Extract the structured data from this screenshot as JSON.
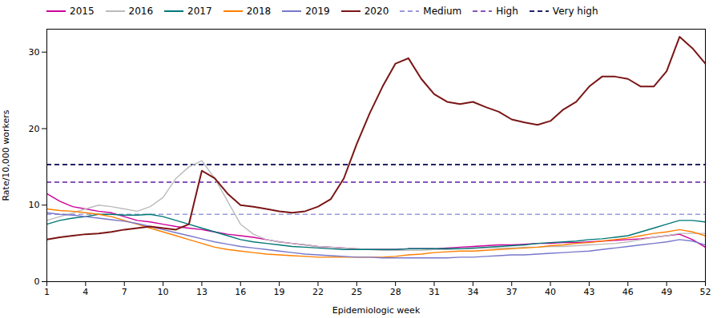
{
  "chart_data": {
    "type": "line",
    "x": [
      1,
      2,
      3,
      4,
      5,
      6,
      7,
      8,
      9,
      10,
      11,
      12,
      13,
      14,
      15,
      16,
      17,
      18,
      19,
      20,
      21,
      22,
      23,
      24,
      25,
      26,
      27,
      28,
      29,
      30,
      31,
      32,
      33,
      34,
      35,
      36,
      37,
      38,
      39,
      40,
      41,
      42,
      43,
      44,
      45,
      46,
      47,
      48,
      49,
      50,
      51,
      52
    ],
    "series": [
      {
        "name": "2015",
        "color": "#CC0099",
        "line_style": "solid",
        "values": [
          11.5,
          10.5,
          9.8,
          9.5,
          9.2,
          9.0,
          8.5,
          8.0,
          7.8,
          7.5,
          7.2,
          7.0,
          6.8,
          6.5,
          6.2,
          6.0,
          5.8,
          5.5,
          5.2,
          5.0,
          4.8,
          4.6,
          4.5,
          4.4,
          4.3,
          4.2,
          4.2,
          4.2,
          4.3,
          4.3,
          4.3,
          4.4,
          4.5,
          4.6,
          4.7,
          4.8,
          4.8,
          4.9,
          5.0,
          5.0,
          5.1,
          5.1,
          5.2,
          5.3,
          5.4,
          5.5,
          5.6,
          5.8,
          6.0,
          6.2,
          5.5,
          4.5
        ]
      },
      {
        "name": "2016",
        "color": "#BBBBBB",
        "line_style": "solid",
        "values": [
          8.0,
          8.5,
          9.0,
          9.5,
          10.0,
          9.8,
          9.5,
          9.2,
          9.8,
          11.0,
          13.5,
          15.0,
          15.8,
          13.5,
          10.5,
          7.5,
          6.2,
          5.5,
          5.2,
          5.0,
          4.8,
          4.6,
          4.5,
          4.4,
          4.3,
          4.2,
          4.1,
          4.1,
          4.1,
          4.1,
          4.2,
          4.2,
          4.3,
          4.3,
          4.4,
          4.4,
          4.4,
          4.5,
          4.5,
          4.6,
          4.6,
          4.7,
          4.8,
          4.9,
          5.0,
          5.2,
          5.5,
          5.8,
          6.0,
          6.3,
          6.3,
          6.3
        ]
      },
      {
        "name": "2017",
        "color": "#007777",
        "line_style": "solid",
        "values": [
          7.5,
          8.0,
          8.3,
          8.5,
          8.8,
          8.8,
          8.7,
          8.7,
          8.8,
          8.5,
          8.0,
          7.5,
          7.0,
          6.5,
          6.0,
          5.5,
          5.2,
          5.0,
          4.8,
          4.6,
          4.5,
          4.4,
          4.3,
          4.2,
          4.2,
          4.2,
          4.2,
          4.2,
          4.3,
          4.3,
          4.3,
          4.3,
          4.3,
          4.4,
          4.5,
          4.6,
          4.7,
          4.8,
          5.0,
          5.1,
          5.2,
          5.3,
          5.5,
          5.6,
          5.8,
          6.0,
          6.5,
          7.0,
          7.5,
          8.0,
          8.0,
          7.8
        ]
      },
      {
        "name": "2018",
        "color": "#FF7F00",
        "line_style": "solid",
        "values": [
          9.5,
          9.3,
          9.2,
          9.0,
          8.8,
          8.5,
          8.0,
          7.5,
          7.0,
          6.5,
          6.0,
          5.5,
          5.0,
          4.5,
          4.2,
          4.0,
          3.8,
          3.6,
          3.5,
          3.4,
          3.3,
          3.2,
          3.2,
          3.2,
          3.2,
          3.2,
          3.2,
          3.3,
          3.5,
          3.6,
          3.8,
          3.9,
          4.0,
          4.0,
          4.1,
          4.2,
          4.3,
          4.4,
          4.5,
          4.7,
          4.8,
          5.0,
          5.1,
          5.3,
          5.5,
          5.7,
          6.0,
          6.3,
          6.5,
          6.8,
          6.5,
          6.0
        ]
      },
      {
        "name": "2019",
        "color": "#7777CC",
        "line_style": "solid",
        "values": [
          9.0,
          8.8,
          8.7,
          8.5,
          8.3,
          8.1,
          7.9,
          7.6,
          7.2,
          6.8,
          6.4,
          6.0,
          5.6,
          5.2,
          4.9,
          4.6,
          4.4,
          4.2,
          4.0,
          3.8,
          3.6,
          3.5,
          3.4,
          3.3,
          3.2,
          3.2,
          3.1,
          3.1,
          3.1,
          3.1,
          3.1,
          3.1,
          3.2,
          3.2,
          3.3,
          3.4,
          3.5,
          3.5,
          3.6,
          3.7,
          3.8,
          3.9,
          4.0,
          4.2,
          4.4,
          4.6,
          4.8,
          5.0,
          5.2,
          5.5,
          5.3,
          4.8
        ]
      },
      {
        "name": "2020",
        "color": "#7B1515",
        "line_style": "solid",
        "values": [
          5.5,
          5.8,
          6.0,
          6.2,
          6.3,
          6.5,
          6.8,
          7.0,
          7.2,
          7.0,
          6.8,
          7.5,
          14.5,
          13.5,
          11.5,
          10.0,
          9.8,
          9.5,
          9.2,
          9.0,
          9.2,
          9.8,
          10.8,
          13.5,
          18.0,
          22.0,
          25.5,
          28.5,
          29.2,
          26.5,
          24.5,
          23.5,
          23.2,
          23.5,
          22.8,
          22.2,
          21.2,
          20.8,
          20.5,
          21.0,
          22.5,
          23.5,
          25.5,
          26.8,
          26.8,
          26.5,
          25.5,
          25.5,
          27.5,
          32.0,
          30.5,
          28.5
        ]
      }
    ],
    "reference_lines": [
      {
        "name": "Medium",
        "color": "#9999DD",
        "line_style": "dashed",
        "value": 8.8
      },
      {
        "name": "High",
        "color": "#8855BB",
        "line_style": "dashed",
        "value": 13.0
      },
      {
        "name": "Very high",
        "color": "#222266",
        "line_style": "dashed",
        "value": 15.3
      }
    ],
    "xlabel": "Epidemiologic week",
    "ylabel": "Rate/10,000 workers",
    "xlim": [
      1,
      52
    ],
    "xticks": [
      1,
      4,
      7,
      10,
      13,
      16,
      19,
      22,
      25,
      28,
      31,
      34,
      37,
      40,
      43,
      46,
      49,
      52
    ],
    "ylim": [
      0,
      33
    ],
    "yticks": [
      0,
      10,
      20,
      30
    ],
    "grid": false,
    "legend": "upper left"
  }
}
